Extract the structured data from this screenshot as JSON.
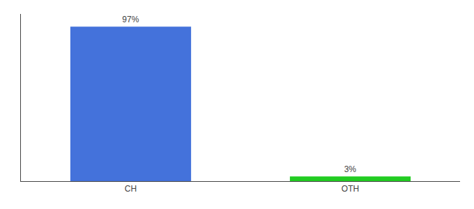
{
  "chart_data": {
    "type": "bar",
    "categories": [
      "CH",
      "OTH"
    ],
    "values": [
      97,
      3
    ],
    "value_labels": [
      "97%",
      "3%"
    ],
    "colors": [
      "#4472db",
      "#22cc22"
    ],
    "ylim": [
      0,
      105
    ],
    "data_labels": true,
    "tick_labels": "x",
    "grid": false
  }
}
